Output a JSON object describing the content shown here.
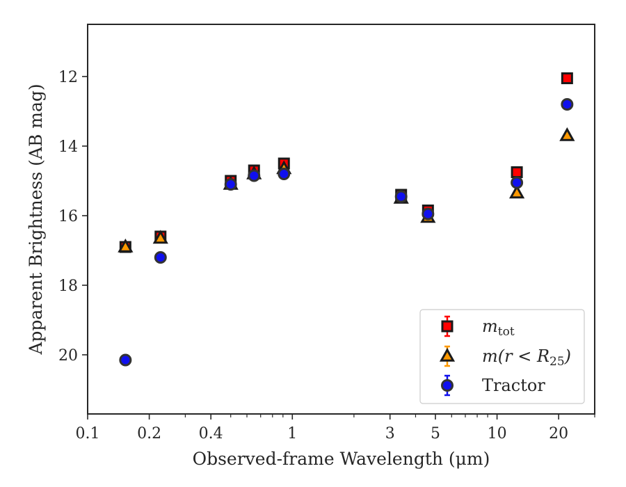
{
  "chart_data": {
    "type": "scatter",
    "xlabel": "Observed-frame Wavelength (μm)",
    "ylabel": "Apparent Brightness (AB mag)",
    "x_scale": "log",
    "xlim": [
      0.1,
      30
    ],
    "ylim": [
      21.7,
      10.5
    ],
    "y_inverted": true,
    "x_major_ticks": [
      {
        "value": 0.1,
        "label": "0.1"
      },
      {
        "value": 0.2,
        "label": "0.2"
      },
      {
        "value": 0.4,
        "label": "0.4"
      },
      {
        "value": 1,
        "label": "1"
      },
      {
        "value": 3,
        "label": "3"
      },
      {
        "value": 5,
        "label": "5"
      },
      {
        "value": 10,
        "label": "10"
      },
      {
        "value": 20,
        "label": "20"
      }
    ],
    "x_minor_ticks": [
      0.3,
      0.5,
      0.6,
      0.7,
      0.8,
      0.9,
      2,
      4,
      6,
      7,
      8,
      9,
      30
    ],
    "y_ticks": [
      12,
      14,
      16,
      18,
      20
    ],
    "grid": false,
    "legend_position": "bottom-right",
    "series": [
      {
        "name": "m_tot",
        "legend_label": {
          "base": "m",
          "sub": "tot"
        },
        "marker": "square",
        "color": "#ff0000",
        "edge_color": "#1a1a1a",
        "errorbar_color": "#ff0000",
        "points": [
          {
            "x": 0.153,
            "y": 16.9
          },
          {
            "x": 0.227,
            "y": 16.6
          },
          {
            "x": 0.5,
            "y": 15.0
          },
          {
            "x": 0.65,
            "y": 14.7
          },
          {
            "x": 0.91,
            "y": 14.5
          },
          {
            "x": 3.4,
            "y": 15.4
          },
          {
            "x": 4.6,
            "y": 15.85
          },
          {
            "x": 12.5,
            "y": 14.75
          },
          {
            "x": 22.0,
            "y": 12.05
          }
        ]
      },
      {
        "name": "m(r < R25)",
        "legend_label": {
          "base": "m(r < R",
          "sub": "25",
          "suffix": ")"
        },
        "marker": "triangle",
        "color": "#ff9900",
        "edge_color": "#1a1a1a",
        "errorbar_color": "#ff9900",
        "points": [
          {
            "x": 0.153,
            "y": 16.9
          },
          {
            "x": 0.227,
            "y": 16.65
          },
          {
            "x": 0.5,
            "y": 15.1
          },
          {
            "x": 0.65,
            "y": 14.8
          },
          {
            "x": 0.91,
            "y": 14.65
          },
          {
            "x": 3.4,
            "y": 15.5
          },
          {
            "x": 4.6,
            "y": 16.05
          },
          {
            "x": 12.5,
            "y": 15.35
          },
          {
            "x": 22.0,
            "y": 13.7
          }
        ]
      },
      {
        "name": "Tractor",
        "legend_label": {
          "base": "Tractor"
        },
        "marker": "circle",
        "color": "#1010ee",
        "edge_color": "#333333",
        "errorbar_color": "#1010ee",
        "points": [
          {
            "x": 0.153,
            "y": 20.15
          },
          {
            "x": 0.227,
            "y": 17.2
          },
          {
            "x": 0.5,
            "y": 15.1
          },
          {
            "x": 0.65,
            "y": 14.85
          },
          {
            "x": 0.91,
            "y": 14.8
          },
          {
            "x": 3.4,
            "y": 15.45
          },
          {
            "x": 4.6,
            "y": 15.95
          },
          {
            "x": 12.5,
            "y": 15.05
          },
          {
            "x": 22.0,
            "y": 12.8
          }
        ]
      }
    ]
  }
}
